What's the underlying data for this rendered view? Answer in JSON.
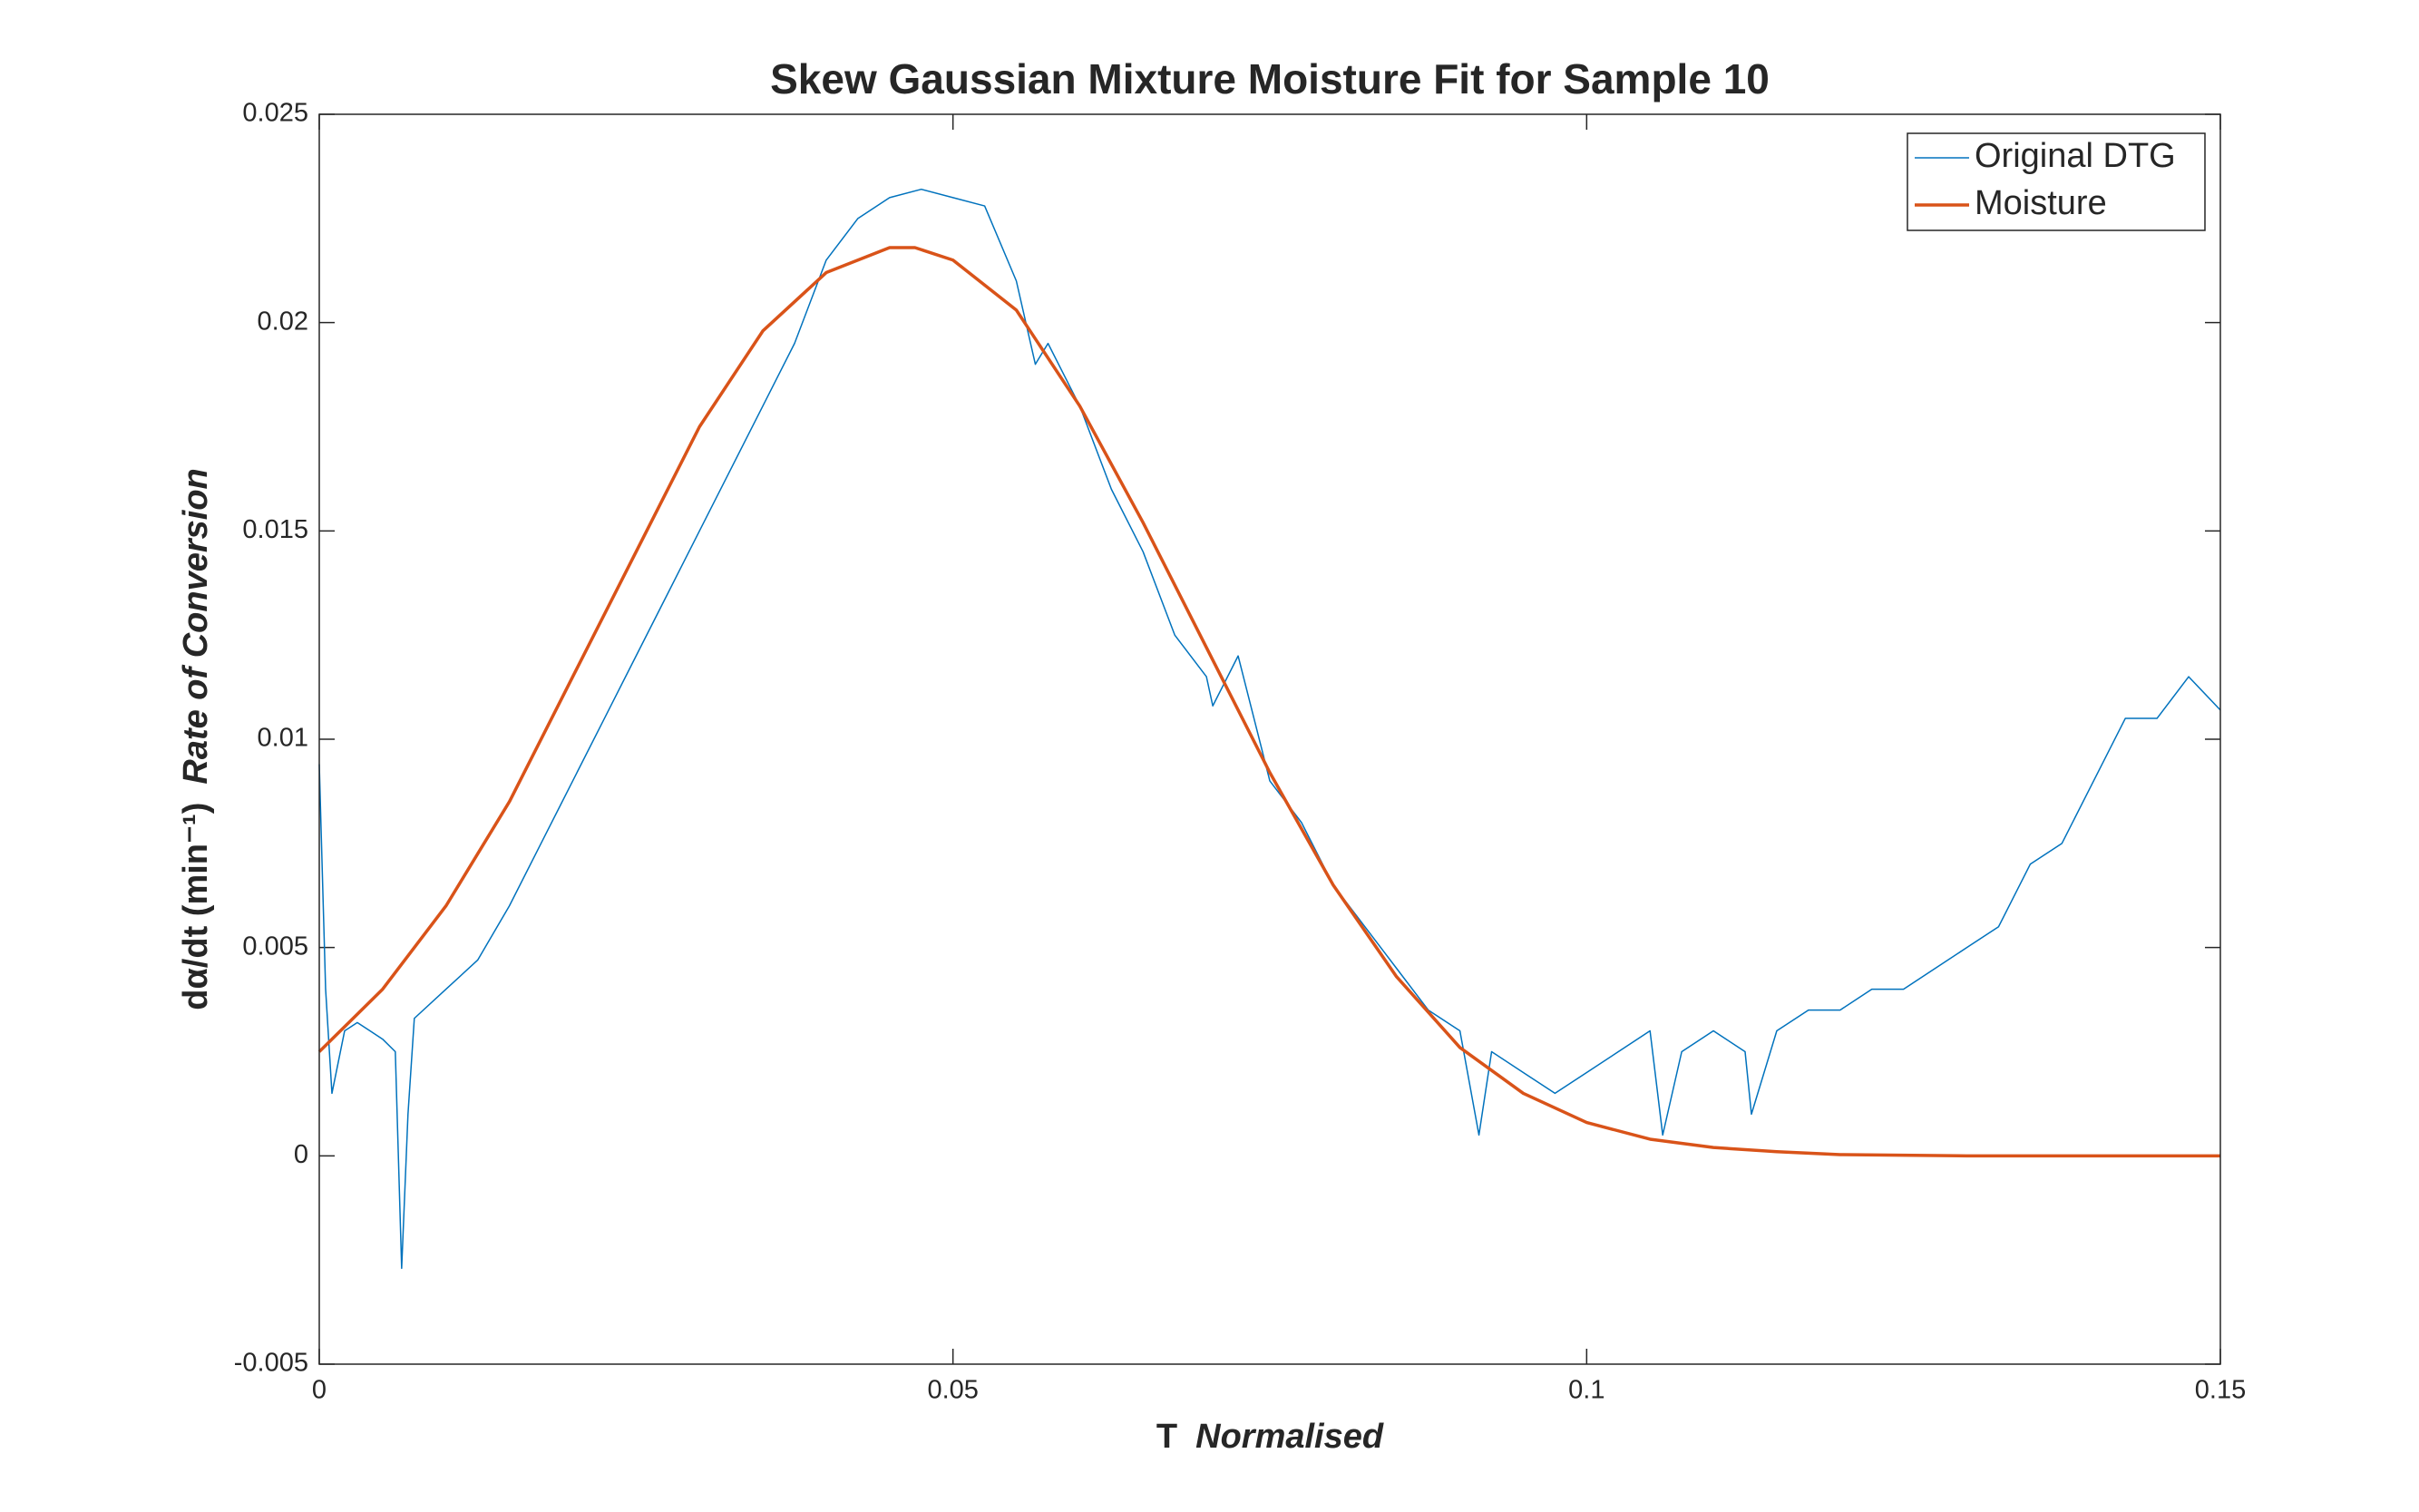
{
  "chart_data": {
    "type": "line",
    "title": "Skew Gaussian Mixture Moisture Fit for Sample 10",
    "xlabel": "T",
    "xlabel_note": "Normalised",
    "ylabel": "dα/dt (min⁻¹)",
    "ylabel_note": "Rate of Conversion",
    "xlim": [
      0,
      0.15
    ],
    "xticks": [
      0,
      0.05,
      0.1,
      0.15
    ],
    "ylim": [
      -0.005,
      0.025
    ],
    "yticks": [
      -0.005,
      0,
      0.005,
      0.01,
      0.015,
      0.02,
      0.025
    ],
    "grid": false,
    "legend": "upper right",
    "series": [
      {
        "name": "Original DTG",
        "color": "#0072bd",
        "width": 1.5,
        "x": [
          0,
          0.0005,
          0.001,
          0.002,
          0.003,
          0.004,
          0.005,
          0.006,
          0.0065,
          0.007,
          0.0075,
          0.01,
          0.0125,
          0.015,
          0.0175,
          0.02,
          0.0225,
          0.025,
          0.0275,
          0.03,
          0.0325,
          0.035,
          0.0375,
          0.04,
          0.0425,
          0.045,
          0.0475,
          0.05,
          0.0525,
          0.055,
          0.0565,
          0.0575,
          0.06,
          0.0625,
          0.065,
          0.0675,
          0.07,
          0.0705,
          0.0725,
          0.075,
          0.0775,
          0.08,
          0.0825,
          0.085,
          0.0875,
          0.09,
          0.0915,
          0.0925,
          0.095,
          0.0975,
          0.1,
          0.1025,
          0.105,
          0.106,
          0.1075,
          0.11,
          0.1125,
          0.113,
          0.115,
          0.1175,
          0.12,
          0.1225,
          0.125,
          0.1275,
          0.13,
          0.1325,
          0.135,
          0.1375,
          0.14,
          0.1425,
          0.145,
          0.1475,
          0.15
        ],
        "values": [
          0.0094,
          0.004,
          0.0015,
          0.003,
          0.0032,
          0.003,
          0.0028,
          0.0025,
          -0.0027,
          0.001,
          0.0033,
          0.004,
          0.0047,
          0.006,
          0.0075,
          0.009,
          0.0105,
          0.012,
          0.0135,
          0.015,
          0.0165,
          0.018,
          0.0195,
          0.0215,
          0.0225,
          0.023,
          0.0232,
          0.023,
          0.0228,
          0.021,
          0.019,
          0.0195,
          0.018,
          0.016,
          0.0145,
          0.0125,
          0.0115,
          0.0108,
          0.012,
          0.009,
          0.008,
          0.0065,
          0.0055,
          0.0045,
          0.0035,
          0.003,
          0.0005,
          0.0025,
          0.002,
          0.0015,
          0.002,
          0.0025,
          0.003,
          0.0005,
          0.0025,
          0.003,
          0.0025,
          0.001,
          0.003,
          0.0035,
          0.0035,
          0.004,
          0.004,
          0.0045,
          0.005,
          0.0055,
          0.007,
          0.0075,
          0.009,
          0.0105,
          0.0105,
          0.0115,
          0.0107
        ]
      },
      {
        "name": "Moisture",
        "color": "#d95319",
        "width": 3.5,
        "x": [
          0,
          0.005,
          0.01,
          0.015,
          0.02,
          0.025,
          0.03,
          0.035,
          0.04,
          0.045,
          0.047,
          0.05,
          0.055,
          0.06,
          0.065,
          0.07,
          0.075,
          0.08,
          0.085,
          0.09,
          0.095,
          0.1,
          0.105,
          0.11,
          0.115,
          0.12,
          0.13,
          0.14,
          0.15
        ],
        "values": [
          0.0025,
          0.004,
          0.006,
          0.0085,
          0.0115,
          0.0145,
          0.0175,
          0.0198,
          0.0212,
          0.0218,
          0.0218,
          0.0215,
          0.0203,
          0.018,
          0.0152,
          0.0122,
          0.0092,
          0.0065,
          0.0043,
          0.0026,
          0.0015,
          0.0008,
          0.0004,
          0.0002,
          0.0001,
          3e-05,
          0,
          0,
          0
        ]
      }
    ]
  }
}
